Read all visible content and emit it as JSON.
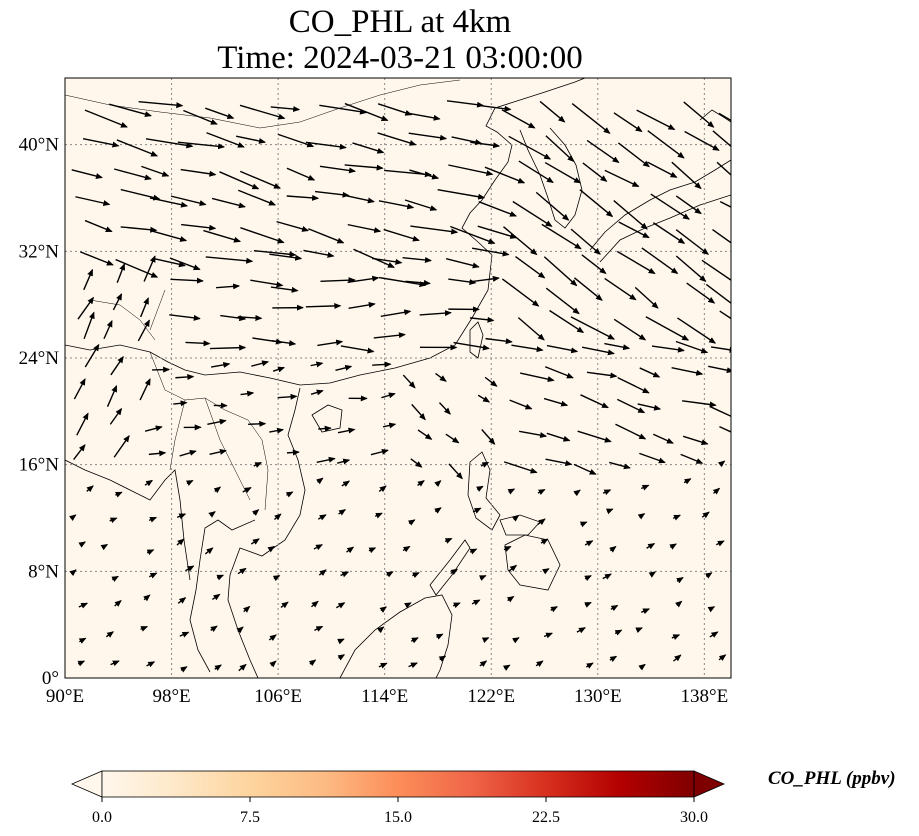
{
  "title": {
    "line1": "CO_PHL at 4km",
    "line2": "Time: 2024-03-21 03:00:00"
  },
  "map": {
    "lon_range": [
      90,
      140
    ],
    "lat_range": [
      0,
      45
    ],
    "lon_ticks": [
      {
        "value": 90,
        "label": "90°E"
      },
      {
        "value": 98,
        "label": "98°E"
      },
      {
        "value": 106,
        "label": "106°E"
      },
      {
        "value": 114,
        "label": "114°E"
      },
      {
        "value": 122,
        "label": "122°E"
      },
      {
        "value": 130,
        "label": "130°E"
      },
      {
        "value": 138,
        "label": "138°E"
      }
    ],
    "lat_ticks": [
      {
        "value": 0,
        "label": "0°"
      },
      {
        "value": 8,
        "label": "8°N"
      },
      {
        "value": 16,
        "label": "16°N"
      },
      {
        "value": 24,
        "label": "24°N"
      },
      {
        "value": 32,
        "label": "32°N"
      },
      {
        "value": 40,
        "label": "40°N"
      }
    ],
    "gridlines": true,
    "background_color": "#fff7ec",
    "coast_color": "#000000"
  },
  "colorbar": {
    "label": "CO_PHL (ppbv)",
    "range": [
      0,
      30
    ],
    "ticks": [
      "0.0",
      "7.5",
      "15.0",
      "22.5",
      "30.0"
    ],
    "tick_values": [
      0,
      7.5,
      15,
      22.5,
      30
    ],
    "extend": "both",
    "colors": [
      "#fff7ec",
      "#fee8c8",
      "#fdd49e",
      "#fdbb84",
      "#fc8d59",
      "#ef6548",
      "#d7301f",
      "#b30000",
      "#7f0000"
    ]
  },
  "wind": {
    "regions": [
      {
        "lon": [
          90,
          122
        ],
        "lat": [
          30,
          45
        ],
        "dir": [
          1,
          -0.25
        ],
        "len": 1.0
      },
      {
        "lon": [
          122,
          140
        ],
        "lat": [
          26,
          45
        ],
        "dir": [
          1,
          -0.65
        ],
        "len": 1.05
      },
      {
        "lon": [
          90,
          96
        ],
        "lat": [
          16,
          30
        ],
        "dir": [
          0.55,
          1
        ],
        "len": 0.6
      },
      {
        "lon": [
          96,
          122
        ],
        "lat": [
          24,
          30
        ],
        "dir": [
          1,
          0
        ],
        "len": 0.8
      },
      {
        "lon": [
          122,
          140
        ],
        "lat": [
          16,
          26
        ],
        "dir": [
          1,
          -0.3
        ],
        "len": 0.75
      },
      {
        "lon": [
          96,
          114
        ],
        "lat": [
          16,
          24
        ],
        "dir": [
          1,
          0.15
        ],
        "len": 0.4
      },
      {
        "lon": [
          114,
          122
        ],
        "lat": [
          16,
          24
        ],
        "dir": [
          0.7,
          -0.6
        ],
        "len": 0.45
      },
      {
        "lon": [
          90,
          140
        ],
        "lat": [
          0,
          16
        ],
        "dir": [
          0.8,
          0.5
        ],
        "len": 0.2
      }
    ]
  }
}
